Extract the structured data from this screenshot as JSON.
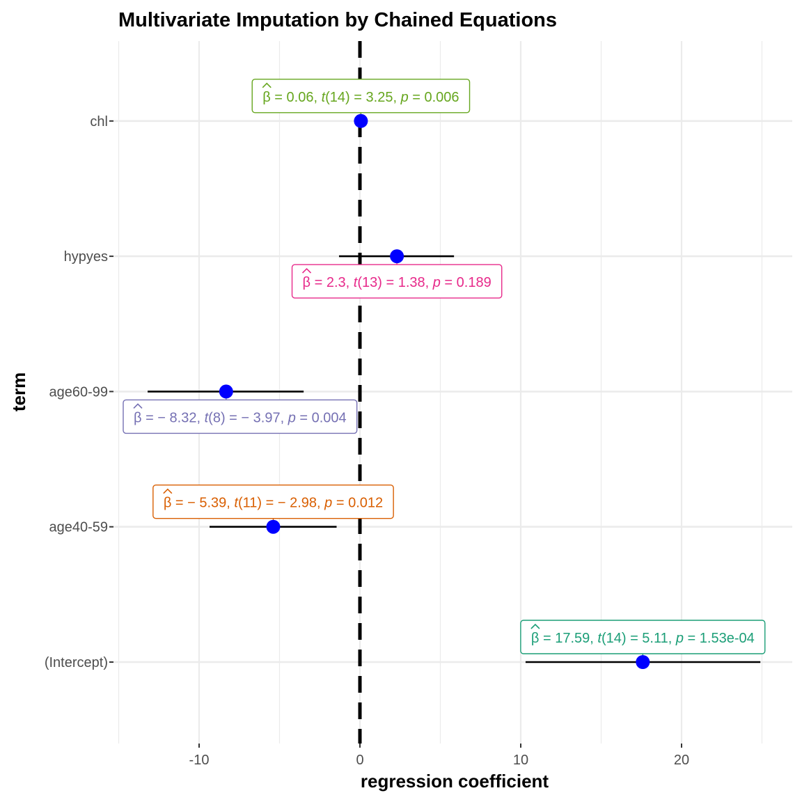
{
  "chart_data": {
    "type": "scatter",
    "title": "Multivariate Imputation by Chained Equations",
    "xlabel": "regression coefficient",
    "ylabel": "term",
    "xlim": [
      -15,
      26.8
    ],
    "x_ticks": [
      -10,
      0,
      10,
      20
    ],
    "x_tick_labels": [
      "-10",
      "0",
      "10",
      "20"
    ],
    "reference_line": 0,
    "grid": true,
    "point_color": "#0000ff",
    "terms": [
      {
        "term": "(Intercept)",
        "estimate": 17.59,
        "ci_low": 10.3,
        "ci_high": 24.9,
        "color": "#1b9e77",
        "label_position": "above",
        "annotation": {
          "beta": "17.59",
          "df": "14",
          "t": "5.11",
          "p": "1.53e-04"
        }
      },
      {
        "term": "age40-59",
        "estimate": -5.39,
        "ci_low": -9.35,
        "ci_high": -1.45,
        "color": "#d95f02",
        "label_position": "above",
        "annotation": {
          "beta": "− 5.39",
          "df": "11",
          "t": "− 2.98",
          "p": "0.012"
        }
      },
      {
        "term": "age60-99",
        "estimate": -8.32,
        "ci_low": -13.2,
        "ci_high": -3.5,
        "color": "#7570b3",
        "label_position": "below",
        "annotation": {
          "beta": "− 8.32",
          "df": "8",
          "t": "− 3.97",
          "p": "0.004"
        }
      },
      {
        "term": "hypyes",
        "estimate": 2.3,
        "ci_low": -1.3,
        "ci_high": 5.85,
        "color": "#e7298a",
        "label_position": "below",
        "annotation": {
          "beta": "2.3",
          "df": "13",
          "t": "1.38",
          "p": "0.189"
        }
      },
      {
        "term": "chl",
        "estimate": 0.06,
        "ci_low": 0.0,
        "ci_high": 0.12,
        "color": "#66a61e",
        "label_position": "above",
        "annotation": {
          "beta": "0.06",
          "df": "14",
          "t": "3.25",
          "p": "0.006"
        }
      }
    ]
  }
}
